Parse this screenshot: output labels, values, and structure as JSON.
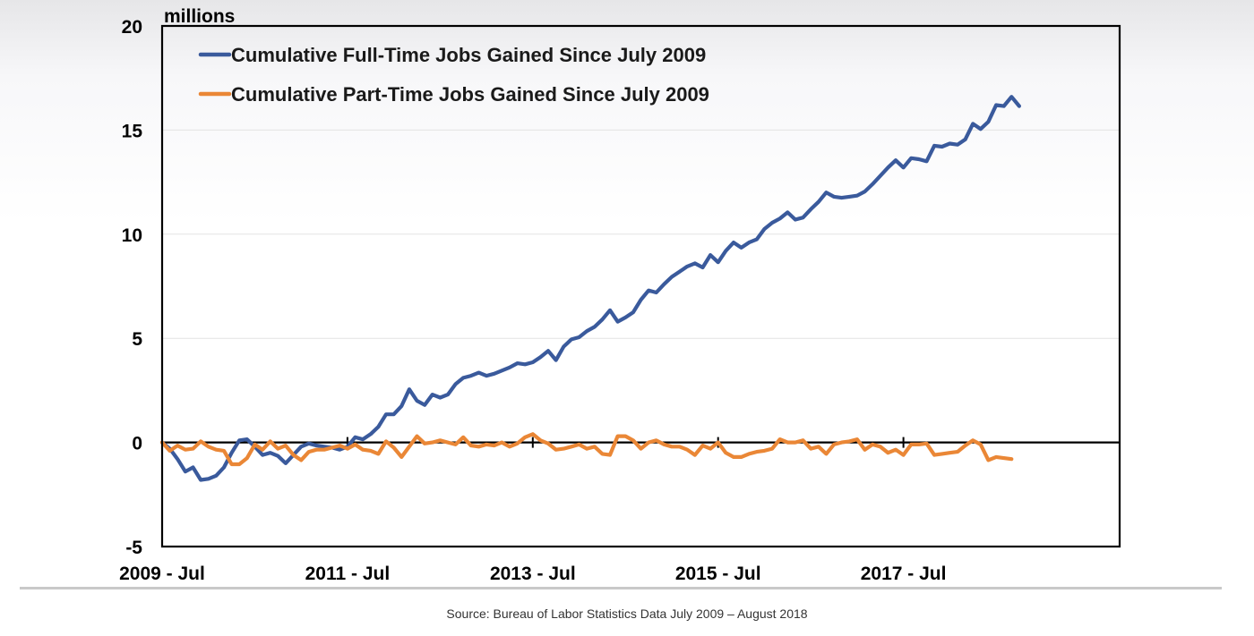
{
  "colors": {
    "full_time": "#3a5a9c",
    "part_time": "#ea8736",
    "axis": "#000000",
    "grid": "#e3e3e3"
  },
  "source": "Source: Bureau of Labor Statistics Data July 2009 – August 2018",
  "chart_data": {
    "type": "line",
    "title": "",
    "ylabel": "millions",
    "xlabel": "",
    "ylim": [
      -5,
      20
    ],
    "yticks": [
      -5,
      0,
      5,
      10,
      15,
      20
    ],
    "x_range_months": [
      0,
      124
    ],
    "x_ticks": [
      {
        "month": 0,
        "label": "2009 - Jul"
      },
      {
        "month": 24,
        "label": "2011 - Jul"
      },
      {
        "month": 48,
        "label": "2013 - Jul"
      },
      {
        "month": 72,
        "label": "2015 - Jul"
      },
      {
        "month": 96,
        "label": "2017 - Jul"
      }
    ],
    "legend_position": "top-left",
    "series": [
      {
        "name": "Cumulative Full-Time Jobs Gained Since July 2009",
        "key": "full_time",
        "values": [
          0,
          -0.3,
          -0.8,
          -1.4,
          -1.2,
          -1.8,
          -1.75,
          -1.6,
          -1.2,
          -0.5,
          0.1,
          0.15,
          -0.2,
          -0.6,
          -0.5,
          -0.65,
          -1.0,
          -0.6,
          -0.2,
          -0.05,
          -0.15,
          -0.2,
          -0.25,
          -0.35,
          -0.2,
          0.25,
          0.15,
          0.4,
          0.75,
          1.35,
          1.35,
          1.75,
          2.55,
          2.0,
          1.8,
          2.3,
          2.15,
          2.3,
          2.8,
          3.1,
          3.2,
          3.35,
          3.2,
          3.3,
          3.45,
          3.6,
          3.8,
          3.75,
          3.85,
          4.1,
          4.4,
          3.95,
          4.6,
          4.95,
          5.05,
          5.35,
          5.55,
          5.9,
          6.35,
          5.8,
          6.0,
          6.25,
          6.85,
          7.3,
          7.2,
          7.6,
          7.95,
          8.2,
          8.45,
          8.6,
          8.4,
          9.0,
          8.65,
          9.2,
          9.6,
          9.35,
          9.6,
          9.75,
          10.25,
          10.55,
          10.75,
          11.05,
          10.7,
          10.8,
          11.2,
          11.55,
          12.0,
          11.8,
          11.75,
          11.8,
          11.85,
          12.05,
          12.4,
          12.8,
          13.2,
          13.55,
          13.2,
          13.65,
          13.6,
          13.5,
          14.25,
          14.2,
          14.35,
          14.3,
          14.55,
          15.3,
          15.05,
          15.4,
          16.2,
          16.15,
          16.6,
          16.15
        ],
        "color": "#3a5a9c"
      },
      {
        "name": "Cumulative Part-Time Jobs Gained Since July 2009",
        "key": "part_time",
        "values": [
          0,
          -0.4,
          -0.15,
          -0.35,
          -0.3,
          0.05,
          -0.2,
          -0.35,
          -0.4,
          -1.05,
          -1.05,
          -0.75,
          -0.1,
          -0.35,
          0.05,
          -0.3,
          -0.15,
          -0.6,
          -0.85,
          -0.45,
          -0.35,
          -0.35,
          -0.25,
          -0.15,
          -0.3,
          -0.1,
          -0.35,
          -0.4,
          -0.55,
          0.05,
          -0.25,
          -0.7,
          -0.2,
          0.3,
          -0.05,
          0.0,
          0.1,
          0.0,
          -0.1,
          0.25,
          -0.15,
          -0.2,
          -0.1,
          -0.15,
          0.0,
          -0.2,
          -0.05,
          0.25,
          0.4,
          0.1,
          -0.05,
          -0.35,
          -0.3,
          -0.2,
          -0.1,
          -0.3,
          -0.2,
          -0.55,
          -0.6,
          0.3,
          0.3,
          0.1,
          -0.3,
          0.0,
          0.1,
          -0.1,
          -0.2,
          -0.2,
          -0.35,
          -0.6,
          -0.15,
          -0.3,
          0.0,
          -0.5,
          -0.7,
          -0.7,
          -0.55,
          -0.45,
          -0.4,
          -0.3,
          0.15,
          0.0,
          0.0,
          0.1,
          -0.3,
          -0.2,
          -0.55,
          -0.1,
          0.0,
          0.05,
          0.15,
          -0.35,
          -0.1,
          -0.2,
          -0.5,
          -0.35,
          -0.6,
          -0.1,
          -0.1,
          -0.05,
          -0.6,
          -0.55,
          -0.5,
          -0.45,
          -0.15,
          0.1,
          -0.1,
          -0.85,
          -0.7,
          -0.75,
          -0.8
        ],
        "color": "#ea8736"
      }
    ]
  }
}
